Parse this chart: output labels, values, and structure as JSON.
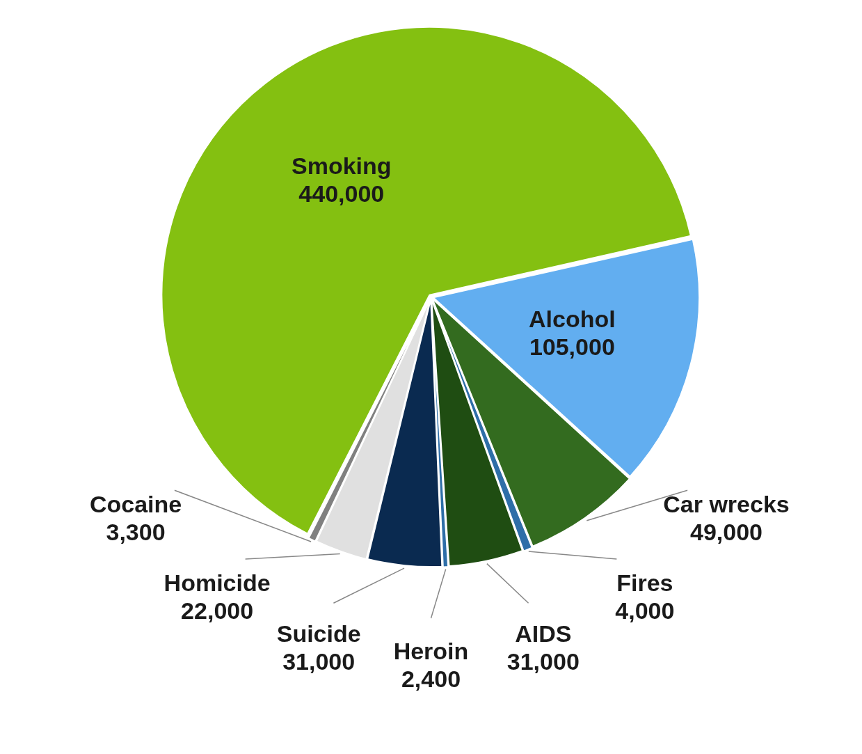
{
  "chart_data": {
    "type": "pie",
    "categories": [
      "Smoking",
      "Alcohol",
      "Car wrecks",
      "Fires",
      "AIDS",
      "Heroin",
      "Suicide",
      "Homicide",
      "Cocaine"
    ],
    "values": [
      440000,
      105000,
      49000,
      4000,
      31000,
      2400,
      31000,
      22000,
      3300
    ],
    "value_labels": [
      "440,000",
      "105,000",
      "49,000",
      "4,000",
      "31,000",
      "2,400",
      "31,000",
      "22,000",
      "3,300"
    ],
    "colors": [
      "#84c011",
      "#62aef0",
      "#336b1f",
      "#2e6ea8",
      "#1f4d12",
      "#2e6ea8",
      "#0a2a50",
      "#e0e0e0",
      "#808080"
    ],
    "data_labels": true,
    "legend": false
  }
}
